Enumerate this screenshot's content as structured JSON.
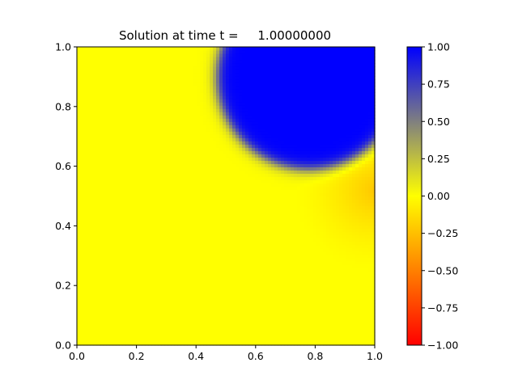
{
  "chart_data": {
    "type": "heatmap",
    "title": "Solution at time t =     1.00000000",
    "xlabel": "",
    "ylabel": "",
    "xlim": [
      0.0,
      1.0
    ],
    "ylim": [
      0.0,
      1.0
    ],
    "x_ticks": [
      "0.0",
      "0.2",
      "0.4",
      "0.6",
      "0.8",
      "1.0"
    ],
    "y_ticks": [
      "0.0",
      "0.2",
      "0.4",
      "0.6",
      "0.8",
      "1.0"
    ],
    "x_tick_values": [
      0.0,
      0.2,
      0.4,
      0.6,
      0.8,
      1.0
    ],
    "y_tick_values": [
      0.0,
      0.2,
      0.4,
      0.6,
      0.8,
      1.0
    ],
    "grid": false,
    "colormap": [
      {
        "value": -1.0,
        "color": "#ff0000"
      },
      {
        "value": -0.5,
        "color": "#ff8000"
      },
      {
        "value": 0.0,
        "color": "#ffff00"
      },
      {
        "value": 1.0,
        "color": "#0000ff"
      }
    ],
    "colorbar": {
      "range": [
        -1.0,
        1.0
      ],
      "placement": "right",
      "ticks": [
        "1.00",
        "0.75",
        "0.50",
        "0.25",
        "0.00",
        "−0.25",
        "−0.50",
        "−0.75",
        "−1.00"
      ],
      "tick_values": [
        1.0,
        0.75,
        0.5,
        0.25,
        0.0,
        -0.25,
        -0.5,
        -0.75,
        -1.0
      ]
    },
    "field": {
      "background_value": 0.0,
      "features": [
        {
          "kind": "disk",
          "center": [
            0.78,
            0.9
          ],
          "radius": 0.31,
          "value": 1.0
        },
        {
          "kind": "depression",
          "center": [
            1.0,
            0.52
          ],
          "radius": 0.28,
          "value": -0.22
        }
      ]
    }
  }
}
